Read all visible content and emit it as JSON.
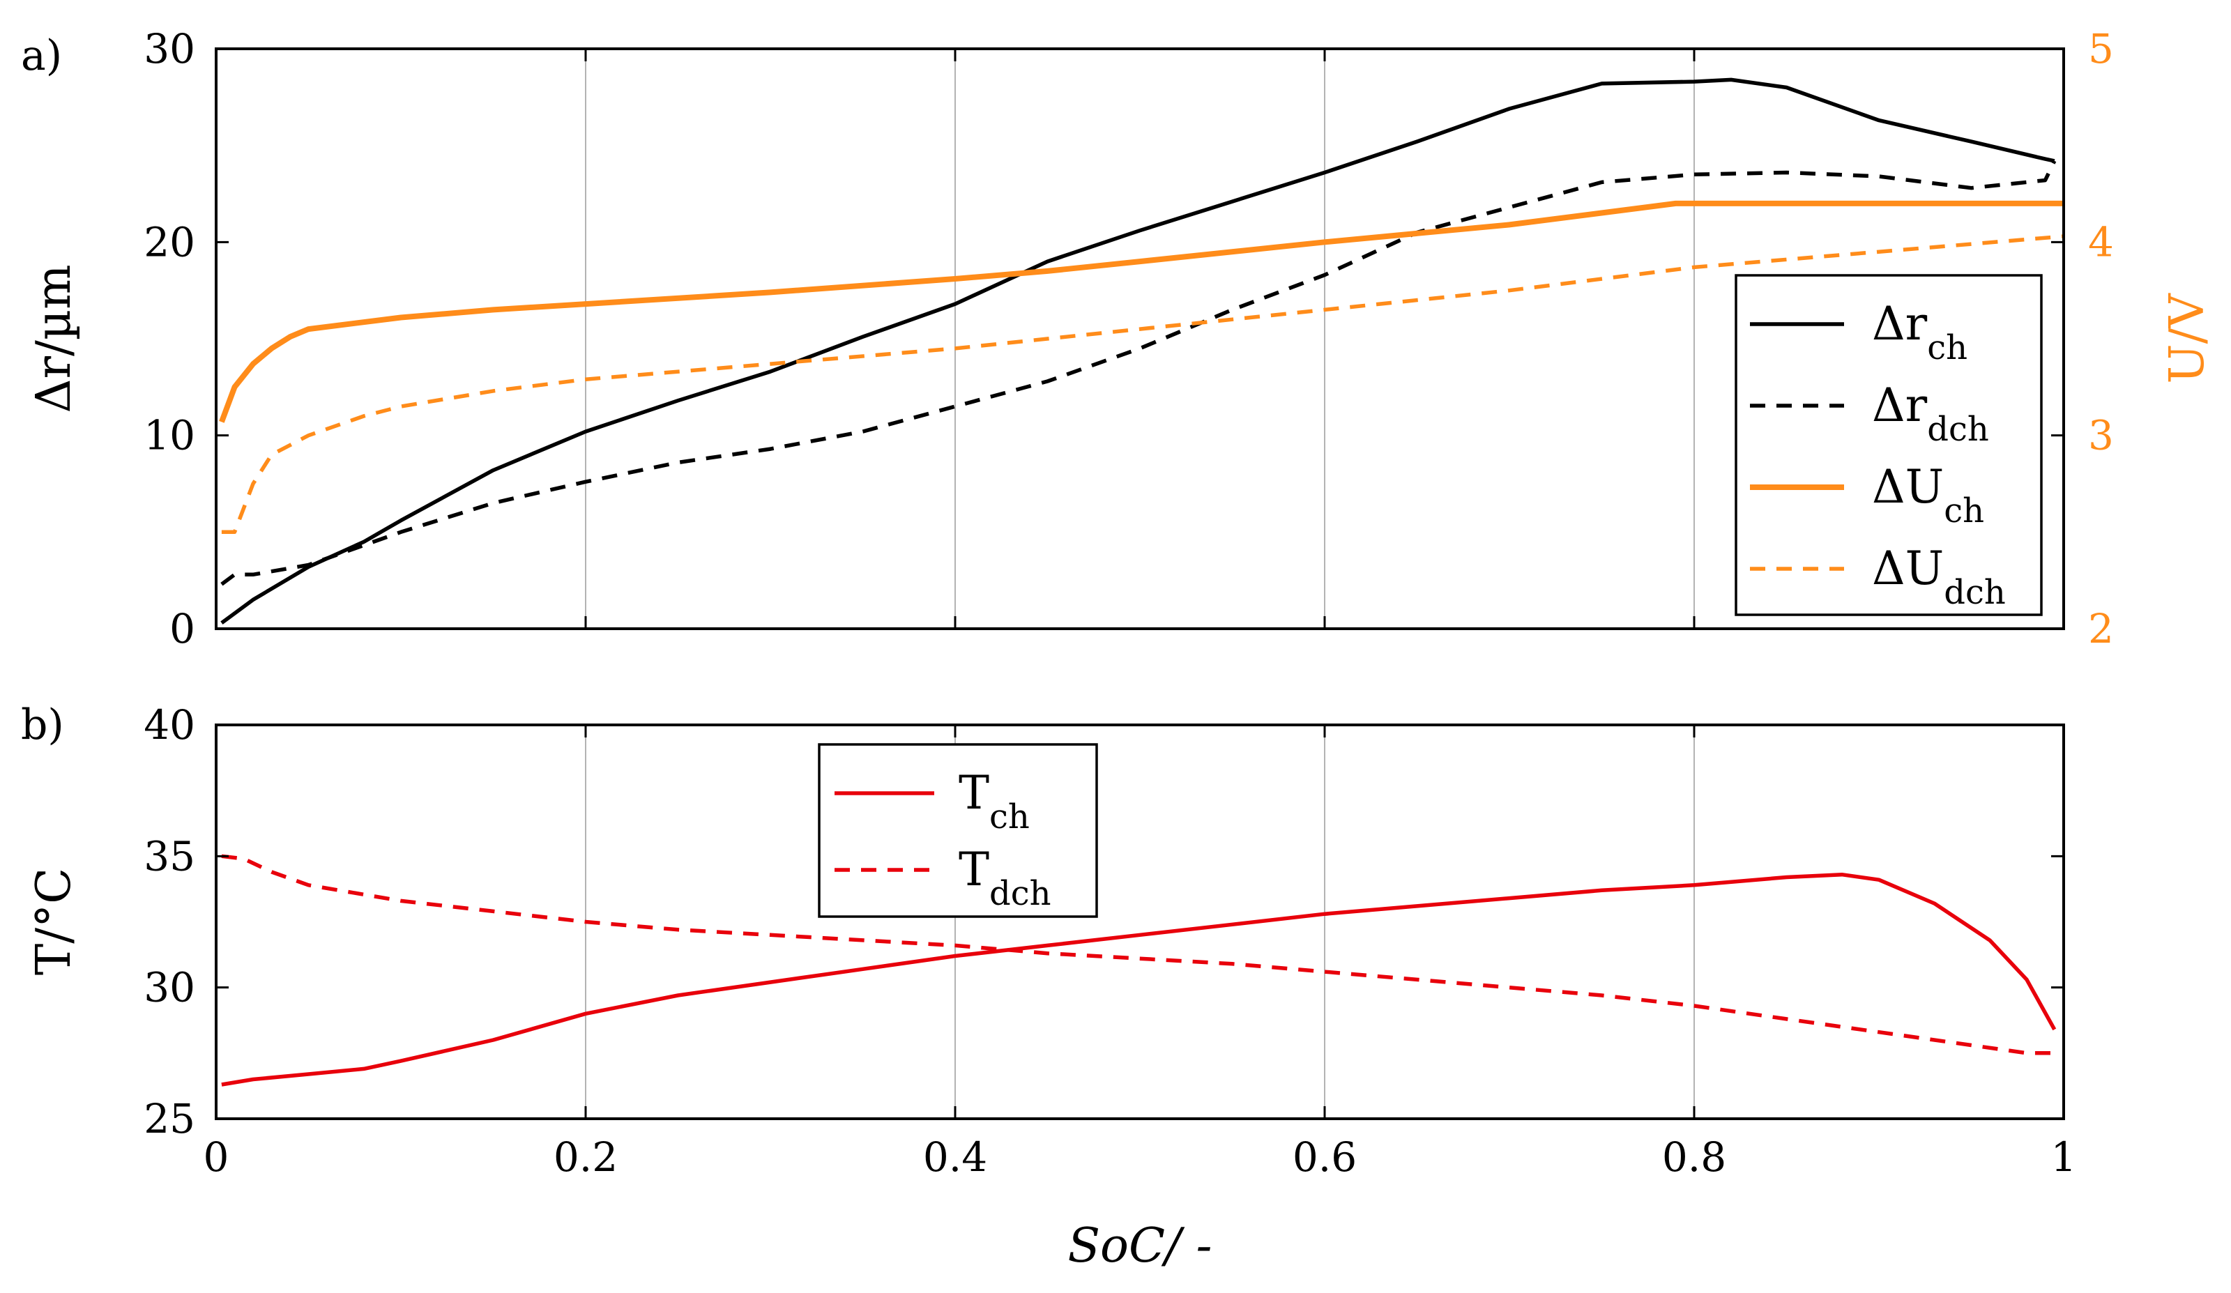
{
  "figure": {
    "panel_a_label": "a)",
    "panel_b_label": "b)",
    "shared_xlabel": "SoC/ -"
  },
  "colors": {
    "black": "#000000",
    "orange": "#ff8c1a",
    "red": "#e8000b",
    "grid": "#b3b3b3"
  },
  "chart_data": [
    {
      "id": "panel-a",
      "type": "line",
      "xlabel": "SoC/ -",
      "ylabel": "Δr/µm",
      "y2label": "U/V",
      "xlim": [
        0,
        1
      ],
      "ylim": [
        0,
        30
      ],
      "y2lim": [
        2,
        5
      ],
      "xticks": [
        0,
        0.2,
        0.4,
        0.6,
        0.8,
        1
      ],
      "yticks": [
        0,
        10,
        20,
        30
      ],
      "y2ticks": [
        2,
        3,
        4,
        5
      ],
      "grid": "vertical lines at x ticks",
      "legend_position": "lower-right",
      "series": [
        {
          "name": "Δr_ch",
          "label_main": "Δr",
          "label_sub": "ch",
          "axis": "left",
          "color": "#000000",
          "style": "solid",
          "x": [
            0.003,
            0.02,
            0.05,
            0.08,
            0.1,
            0.15,
            0.2,
            0.25,
            0.3,
            0.35,
            0.4,
            0.45,
            0.5,
            0.55,
            0.6,
            0.65,
            0.7,
            0.75,
            0.8,
            0.82,
            0.85,
            0.9,
            0.95,
            0.99,
            0.995
          ],
          "y": [
            0.3,
            1.5,
            3.2,
            4.5,
            5.6,
            8.2,
            10.2,
            11.8,
            13.3,
            15.1,
            16.8,
            19.0,
            20.6,
            22.1,
            23.6,
            25.2,
            26.9,
            28.2,
            28.3,
            28.4,
            28.0,
            26.3,
            25.2,
            24.3,
            24.2
          ]
        },
        {
          "name": "Δr_dch",
          "label_main": "Δr",
          "label_sub": "dch",
          "axis": "left",
          "color": "#000000",
          "style": "dashed",
          "x": [
            0.003,
            0.01,
            0.02,
            0.05,
            0.1,
            0.15,
            0.2,
            0.25,
            0.3,
            0.35,
            0.4,
            0.45,
            0.5,
            0.55,
            0.6,
            0.65,
            0.7,
            0.75,
            0.8,
            0.85,
            0.9,
            0.95,
            0.99,
            0.995
          ],
          "y": [
            2.3,
            2.8,
            2.8,
            3.3,
            5.0,
            6.5,
            7.6,
            8.6,
            9.3,
            10.2,
            11.5,
            12.8,
            14.5,
            16.5,
            18.3,
            20.5,
            21.8,
            23.1,
            23.5,
            23.6,
            23.4,
            22.8,
            23.2,
            24.2
          ]
        },
        {
          "name": "ΔU_ch",
          "label_main": "ΔU",
          "label_sub": "ch",
          "axis": "right",
          "color": "#ff8c1a",
          "style": "solid",
          "x": [
            0.003,
            0.01,
            0.02,
            0.03,
            0.04,
            0.05,
            0.1,
            0.15,
            0.2,
            0.3,
            0.4,
            0.45,
            0.5,
            0.6,
            0.7,
            0.79,
            0.8,
            0.9,
            1.0
          ],
          "y": [
            3.07,
            3.25,
            3.37,
            3.45,
            3.51,
            3.55,
            3.61,
            3.65,
            3.68,
            3.74,
            3.81,
            3.85,
            3.9,
            4.0,
            4.09,
            4.2,
            4.2,
            4.2,
            4.2
          ]
        },
        {
          "name": "ΔU_dch",
          "label_main": "ΔU",
          "label_sub": "dch",
          "axis": "right",
          "color": "#ff8c1a",
          "style": "dashed",
          "x": [
            0.003,
            0.01,
            0.02,
            0.03,
            0.05,
            0.08,
            0.1,
            0.15,
            0.2,
            0.3,
            0.4,
            0.5,
            0.6,
            0.7,
            0.8,
            0.9,
            1.0
          ],
          "y": [
            2.5,
            2.5,
            2.75,
            2.9,
            3.0,
            3.1,
            3.15,
            3.23,
            3.29,
            3.37,
            3.45,
            3.55,
            3.65,
            3.75,
            3.87,
            3.95,
            4.03
          ]
        }
      ]
    },
    {
      "id": "panel-b",
      "type": "line",
      "xlabel": "SoC/ -",
      "ylabel": "T/°C",
      "xlim": [
        0,
        1
      ],
      "ylim": [
        25,
        40
      ],
      "xticks": [
        0,
        0.2,
        0.4,
        0.6,
        0.8,
        1
      ],
      "xticklabels": [
        "0",
        "0.2",
        "0.4",
        "0.6",
        "0.8",
        "1"
      ],
      "yticks": [
        25,
        30,
        35,
        40
      ],
      "grid": "vertical lines at x ticks",
      "legend_position": "top-left",
      "series": [
        {
          "name": "T_ch",
          "label_main": "T",
          "label_sub": "ch",
          "color": "#e8000b",
          "style": "solid",
          "x": [
            0.003,
            0.02,
            0.05,
            0.08,
            0.1,
            0.15,
            0.2,
            0.25,
            0.3,
            0.35,
            0.4,
            0.45,
            0.5,
            0.55,
            0.6,
            0.65,
            0.7,
            0.75,
            0.8,
            0.85,
            0.88,
            0.9,
            0.93,
            0.96,
            0.98,
            0.995
          ],
          "y": [
            26.3,
            26.5,
            26.7,
            26.9,
            27.2,
            28.0,
            29.0,
            29.7,
            30.2,
            30.7,
            31.2,
            31.6,
            32.0,
            32.4,
            32.8,
            33.1,
            33.4,
            33.7,
            33.9,
            34.2,
            34.3,
            34.1,
            33.2,
            31.8,
            30.3,
            28.4
          ]
        },
        {
          "name": "T_dch",
          "label_main": "T",
          "label_sub": "dch",
          "color": "#e8000b",
          "style": "dashed",
          "x": [
            0.003,
            0.015,
            0.03,
            0.05,
            0.1,
            0.15,
            0.2,
            0.25,
            0.3,
            0.35,
            0.4,
            0.45,
            0.5,
            0.55,
            0.6,
            0.65,
            0.7,
            0.75,
            0.8,
            0.85,
            0.9,
            0.95,
            0.98,
            0.995
          ],
          "y": [
            35.0,
            34.9,
            34.4,
            33.9,
            33.3,
            32.9,
            32.5,
            32.2,
            32.0,
            31.8,
            31.6,
            31.3,
            31.1,
            30.9,
            30.6,
            30.3,
            30.0,
            29.7,
            29.3,
            28.8,
            28.3,
            27.8,
            27.5,
            27.5
          ]
        }
      ]
    }
  ]
}
